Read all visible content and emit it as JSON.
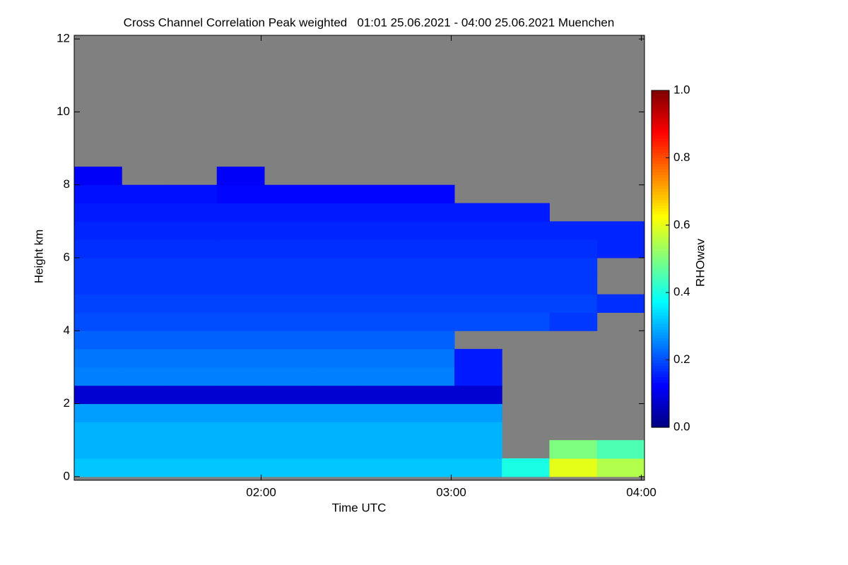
{
  "chart_data": {
    "type": "heatmap",
    "title": "Cross Channel Correlation Peak weighted   01:01 25.06.2021 - 04:00 25.06.2021 Muenchen",
    "x_label": "Time UTC",
    "y_label": "Height km",
    "xlim": [
      61,
      241
    ],
    "xticks": [
      {
        "value": 120,
        "label": "02:00"
      },
      {
        "value": 180,
        "label": "03:00"
      },
      {
        "value": 240,
        "label": "04:00"
      }
    ],
    "ylim": [
      -0.1,
      12.1
    ],
    "yticks": [
      0,
      2,
      4,
      6,
      8,
      10,
      12
    ],
    "xbins": [
      61,
      76,
      91,
      106,
      121,
      136,
      151,
      166,
      181,
      196,
      211,
      226,
      241
    ],
    "ybins": [
      0,
      0.5,
      1,
      1.5,
      2,
      2.5,
      3,
      3.5,
      4,
      4.5,
      5,
      5.5,
      6,
      6.5,
      7,
      7.5,
      8,
      8.5,
      9,
      9.5,
      10,
      10.5,
      11,
      11.5,
      12
    ],
    "z": [
      [
        0.32,
        0.32,
        0.32,
        0.32,
        0.32,
        0.32,
        0.32,
        0.32,
        0.32,
        0.4,
        0.6,
        0.55
      ],
      [
        0.3,
        0.3,
        0.3,
        0.3,
        0.3,
        0.3,
        0.3,
        0.3,
        0.3,
        null,
        0.5,
        0.45
      ],
      [
        0.3,
        0.3,
        0.3,
        0.3,
        0.3,
        0.3,
        0.3,
        0.3,
        0.3,
        null,
        null,
        null
      ],
      [
        0.28,
        0.28,
        0.28,
        0.28,
        0.28,
        0.28,
        0.28,
        0.28,
        0.28,
        null,
        null,
        null
      ],
      [
        0.08,
        0.08,
        0.08,
        0.08,
        0.08,
        0.08,
        0.08,
        0.08,
        0.08,
        null,
        null,
        null
      ],
      [
        0.25,
        0.25,
        0.25,
        0.25,
        0.25,
        0.25,
        0.25,
        0.25,
        0.15,
        null,
        null,
        null
      ],
      [
        0.24,
        0.24,
        0.24,
        0.24,
        0.24,
        0.24,
        0.24,
        0.24,
        0.15,
        null,
        null,
        null
      ],
      [
        0.22,
        0.22,
        0.22,
        0.22,
        0.22,
        0.22,
        0.22,
        0.22,
        null,
        null,
        null,
        null
      ],
      [
        0.2,
        0.2,
        0.2,
        0.2,
        0.2,
        0.2,
        0.2,
        0.2,
        0.2,
        0.2,
        0.18,
        null
      ],
      [
        0.19,
        0.19,
        0.19,
        0.19,
        0.19,
        0.19,
        0.19,
        0.19,
        0.19,
        0.19,
        0.19,
        0.17
      ],
      [
        0.18,
        0.18,
        0.18,
        0.18,
        0.18,
        0.18,
        0.18,
        0.18,
        0.18,
        0.18,
        0.18,
        null
      ],
      [
        0.18,
        0.18,
        0.18,
        0.18,
        0.18,
        0.18,
        0.18,
        0.18,
        0.18,
        0.18,
        0.18,
        null
      ],
      [
        0.17,
        0.17,
        0.17,
        0.17,
        0.17,
        0.17,
        0.17,
        0.17,
        0.17,
        0.17,
        0.17,
        0.16
      ],
      [
        0.16,
        0.16,
        0.16,
        0.16,
        0.16,
        0.16,
        0.16,
        0.16,
        0.16,
        0.16,
        0.16,
        0.16
      ],
      [
        0.15,
        0.15,
        0.15,
        0.15,
        0.15,
        0.15,
        0.15,
        0.15,
        0.15,
        0.15,
        null,
        null
      ],
      [
        0.14,
        0.14,
        0.14,
        0.13,
        0.13,
        0.13,
        0.13,
        0.13,
        null,
        null,
        null,
        null
      ],
      [
        0.12,
        null,
        null,
        0.12,
        null,
        null,
        null,
        null,
        null,
        null,
        null,
        null
      ],
      [
        null,
        null,
        null,
        null,
        null,
        null,
        null,
        null,
        null,
        null,
        null,
        null
      ],
      [
        null,
        null,
        null,
        null,
        null,
        null,
        null,
        null,
        null,
        null,
        null,
        null
      ],
      [
        null,
        null,
        null,
        null,
        null,
        null,
        null,
        null,
        null,
        null,
        null,
        null
      ],
      [
        null,
        null,
        null,
        null,
        null,
        null,
        null,
        null,
        null,
        null,
        null,
        null
      ],
      [
        null,
        null,
        null,
        null,
        null,
        null,
        null,
        null,
        null,
        null,
        null,
        null
      ],
      [
        null,
        null,
        null,
        null,
        null,
        null,
        null,
        null,
        null,
        null,
        null,
        null
      ],
      [
        null,
        null,
        null,
        null,
        null,
        null,
        null,
        null,
        null,
        null,
        null,
        null
      ]
    ],
    "missing_color": "#808080",
    "colorscale": [
      "#00007f",
      "#0000ff",
      "#0080ff",
      "#00ffff",
      "#7fff7f",
      "#ffff00",
      "#ff8000",
      "#ff0000",
      "#7f0000"
    ],
    "colorbar": {
      "label": "RHOwav",
      "lim": [
        0,
        1
      ],
      "ticks": [
        {
          "value": 0,
          "label": "0.0"
        },
        0.2,
        0.4,
        0.6,
        0.8,
        {
          "value": 1,
          "label": "1.0"
        }
      ]
    }
  }
}
